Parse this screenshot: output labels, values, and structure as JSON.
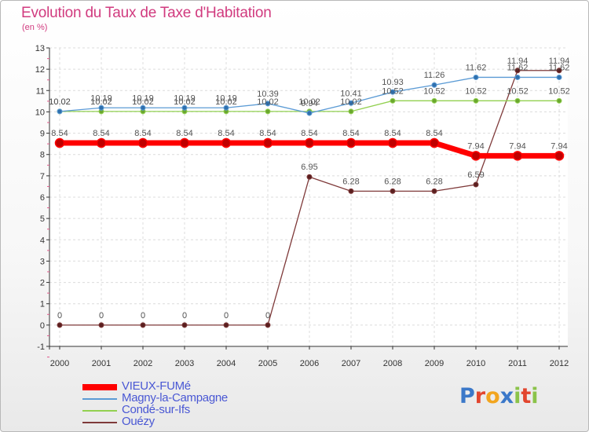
{
  "chart_data": {
    "type": "line",
    "title": "Evolution du Taux de Taxe d'Habitation",
    "unit": "(en %)",
    "x": [
      "2000",
      "2001",
      "2002",
      "2003",
      "2004",
      "2005",
      "2006",
      "2007",
      "2008",
      "2009",
      "2010",
      "2011",
      "2012"
    ],
    "ylim": [
      -1,
      13
    ],
    "yticks": [
      -1,
      0,
      1,
      2,
      3,
      4,
      5,
      6,
      7,
      8,
      9,
      10,
      11,
      12,
      13
    ],
    "grid": true,
    "series": [
      {
        "name": "VIEUX-FUMé",
        "color": "#ff0000",
        "values": [
          8.54,
          8.54,
          8.54,
          8.54,
          8.54,
          8.54,
          8.54,
          8.54,
          8.54,
          8.54,
          7.94,
          7.94,
          7.94
        ],
        "labels": [
          "8.54",
          "8.54",
          "8.54",
          "8.54",
          "8.54",
          "8.54",
          "8.54",
          "8.54",
          "8.54",
          "8.54",
          "7.94",
          "7.94",
          "7.94"
        ]
      },
      {
        "name": "Magny-la-Campagne",
        "color": "#5b9bd5",
        "values": [
          10.02,
          10.19,
          10.19,
          10.19,
          10.19,
          10.39,
          9.94,
          10.41,
          10.93,
          11.26,
          11.62,
          11.62,
          11.62
        ],
        "labels": [
          "10.02",
          "10.19",
          "10.19",
          "10.19",
          "10.19",
          "10.39",
          "9.94",
          "10.41",
          "10.93",
          "11.26",
          "11.62",
          "11.62",
          "11.62"
        ]
      },
      {
        "name": "Condé-sur-Ifs",
        "color": "#92d050",
        "values": [
          10.02,
          10.02,
          10.02,
          10.02,
          10.02,
          10.02,
          10.02,
          10.02,
          10.52,
          10.52,
          10.52,
          10.52,
          10.52
        ],
        "labels": [
          "10.02",
          "10.02",
          "10.02",
          "10.02",
          "10.02",
          "10.02",
          "10.02",
          "10.02",
          "10.52",
          "10.52",
          "10.52",
          "10.52",
          "10.52"
        ]
      },
      {
        "name": "Ouézy",
        "color": "#7f3a3a",
        "values": [
          0,
          0,
          0,
          0,
          0,
          0,
          6.95,
          6.28,
          6.28,
          6.28,
          6.59,
          11.94,
          11.94
        ],
        "labels": [
          "0",
          "0",
          "0",
          "0",
          "0",
          "0",
          "6.95",
          "6.28",
          "6.28",
          "6.28",
          "6.59",
          "11.94",
          "11.94"
        ]
      }
    ]
  },
  "legend": [
    {
      "label": "VIEUX-FUMé",
      "color": "#ff0000"
    },
    {
      "label": "Magny-la-Campagne",
      "color": "#5b9bd5"
    },
    {
      "label": "Condé-sur-Ifs",
      "color": "#92d050"
    },
    {
      "label": "Ouézy",
      "color": "#7f3a3a"
    }
  ],
  "logo": {
    "letters": [
      "P",
      "r",
      "o",
      "x",
      "i",
      "t",
      "i"
    ],
    "colors": [
      "#3b78c9",
      "#e2462f",
      "#f2a51f",
      "#3b78c9",
      "#8bc34a",
      "#e2462f",
      "#8bc34a"
    ]
  }
}
